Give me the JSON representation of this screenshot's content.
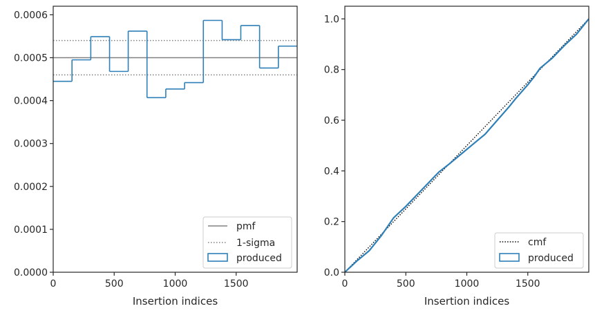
{
  "chart_data": [
    {
      "type": "histogram",
      "xlabel": "Insertion indices",
      "ylabel": "",
      "xlim": [
        0,
        2000
      ],
      "ylim": [
        0,
        0.00062
      ],
      "xticks": [
        0,
        500,
        1000,
        1500
      ],
      "xtick_labels": [
        "0",
        "500",
        "1000",
        "1500"
      ],
      "yticks": [
        0,
        0.0001,
        0.0002,
        0.0003,
        0.0004,
        0.0005,
        0.0006
      ],
      "ytick_labels": [
        "0.0000",
        "0.0001",
        "0.0002",
        "0.0003",
        "0.0004",
        "0.0005",
        "0.0006"
      ],
      "grid": false,
      "legend_location": "lower right",
      "bin_edges": [
        0,
        154,
        308,
        462,
        615,
        769,
        923,
        1077,
        1231,
        1385,
        1538,
        1692,
        1846,
        2000
      ],
      "series": [
        {
          "name": "produced",
          "kind": "step-histogram",
          "color": "#2e7fb8",
          "values": [
            0.000445,
            0.000495,
            0.000549,
            0.000468,
            0.000562,
            0.000407,
            0.000427,
            0.000442,
            0.000587,
            0.000542,
            0.000575,
            0.000476,
            0.000527
          ]
        }
      ],
      "reference_lines": [
        {
          "name": "pmf",
          "style": "solid",
          "color": "#808080",
          "y": 0.0005
        },
        {
          "name": "1-sigma",
          "style": "dotted",
          "color": "#808080",
          "y": [
            0.00046,
            0.00054
          ]
        }
      ],
      "legend": [
        "pmf",
        "1-sigma",
        "produced"
      ]
    },
    {
      "type": "line",
      "xlabel": "Insertion indices",
      "ylabel": "",
      "xlim": [
        0,
        2000
      ],
      "ylim": [
        0,
        1.05
      ],
      "xticks": [
        0,
        500,
        1000,
        1500
      ],
      "xtick_labels": [
        "0",
        "500",
        "1000",
        "1500"
      ],
      "yticks": [
        0,
        0.2,
        0.4,
        0.6,
        0.8,
        1.0
      ],
      "ytick_labels": [
        "0.0",
        "0.2",
        "0.4",
        "0.6",
        "0.8",
        "1.0"
      ],
      "grid": false,
      "legend_location": "lower right",
      "series": [
        {
          "name": "cmf",
          "style": "dotted",
          "color": "#000000",
          "x": [
            0,
            2000
          ],
          "y": [
            0,
            1.0
          ]
        },
        {
          "name": "produced",
          "style": "solid",
          "color": "#2e7fb8",
          "x": [
            0,
            100,
            200,
            300,
            400,
            500,
            600,
            700,
            770,
            850,
            950,
            1050,
            1150,
            1250,
            1350,
            1400,
            1500,
            1550,
            1600,
            1700,
            1800,
            1900,
            2000
          ],
          "y": [
            0,
            0.045,
            0.085,
            0.145,
            0.215,
            0.26,
            0.31,
            0.36,
            0.395,
            0.425,
            0.465,
            0.505,
            0.545,
            0.6,
            0.655,
            0.685,
            0.74,
            0.77,
            0.805,
            0.845,
            0.895,
            0.94,
            1.0
          ]
        }
      ],
      "legend": [
        "cmf",
        "produced"
      ]
    }
  ]
}
